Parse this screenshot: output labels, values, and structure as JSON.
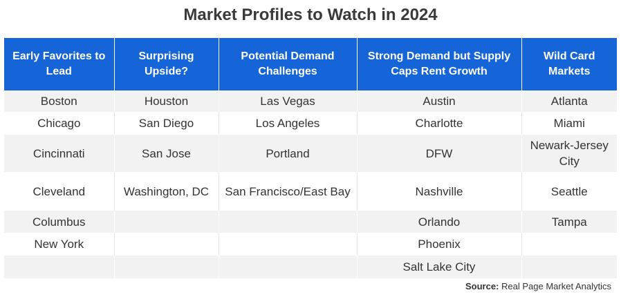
{
  "title": "Market Profiles to Watch in 2024",
  "headers": [
    "Early Favorites to Lead",
    "Surprising Upside?",
    "Potential Demand Challenges",
    "Strong Demand but Supply Caps Rent Growth",
    "Wild Card Markets"
  ],
  "rows": [
    [
      "Boston",
      "Houston",
      "Las Vegas",
      "Austin",
      "Atlanta"
    ],
    [
      "Chicago",
      "San Diego",
      "Los Angeles",
      "Charlotte",
      "Miami"
    ],
    [
      "Cincinnati",
      "San Jose",
      "Portland",
      "DFW",
      "Newark-Jersey City"
    ],
    [
      "Cleveland",
      "Washington, DC",
      "San Francisco/East Bay",
      "Nashville",
      "Seattle"
    ],
    [
      "Columbus",
      "",
      "",
      "Orlando",
      "Tampa"
    ],
    [
      "New York",
      "",
      "",
      "Phoenix",
      ""
    ],
    [
      "",
      "",
      "",
      "Salt Lake City",
      ""
    ]
  ],
  "source": {
    "label": "Source:",
    "text": "Real Page Market Analytics"
  },
  "colors": {
    "header_bg": "#1565d8",
    "header_text": "#ffffff",
    "stripe": "#f2f2f2"
  }
}
